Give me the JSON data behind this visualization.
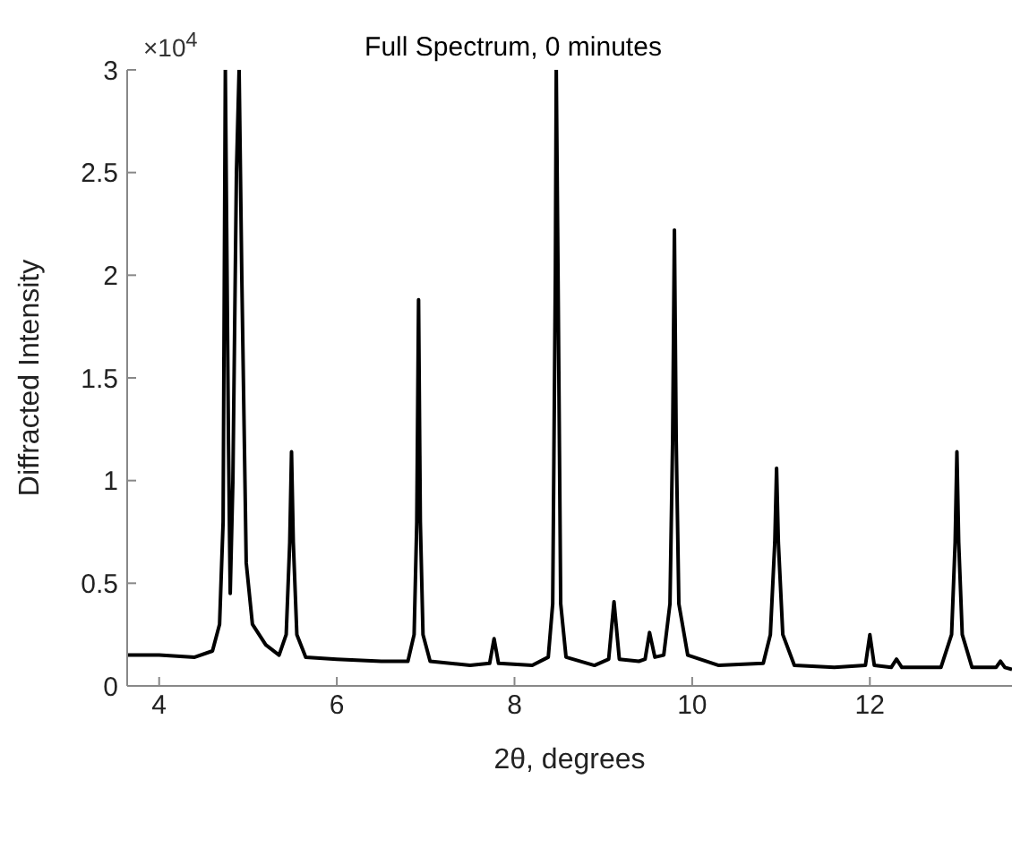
{
  "chart_data": {
    "type": "line",
    "title": "Full Spectrum, 0 minutes",
    "xlabel": "2θ, degrees",
    "ylabel": "Diffracted Intensity",
    "annotations": [
      "×10$^{4}$"
    ],
    "x": [
      3.64,
      4.0,
      4.4,
      4.6,
      4.68,
      4.72,
      4.745,
      4.78,
      4.8,
      4.83,
      4.87,
      4.9,
      4.93,
      4.98,
      5.05,
      5.2,
      5.35,
      5.43,
      5.47,
      5.49,
      5.51,
      5.55,
      5.65,
      6.0,
      6.5,
      6.8,
      6.87,
      6.9,
      6.92,
      6.94,
      6.97,
      7.05,
      7.5,
      7.72,
      7.77,
      7.82,
      8.2,
      8.38,
      8.43,
      8.46,
      8.47,
      8.49,
      8.52,
      8.58,
      8.9,
      9.06,
      9.12,
      9.18,
      9.4,
      9.47,
      9.52,
      9.58,
      9.68,
      9.75,
      9.78,
      9.8,
      9.82,
      9.85,
      9.95,
      10.3,
      10.8,
      10.88,
      10.93,
      10.95,
      10.97,
      11.02,
      11.15,
      11.6,
      11.95,
      12.0,
      12.05,
      12.24,
      12.3,
      12.36,
      12.8,
      12.92,
      12.96,
      12.98,
      13.0,
      13.04,
      13.15,
      13.42,
      13.47,
      13.52,
      13.6
    ],
    "series": [
      {
        "color": "#000000",
        "values": [
          0.15,
          0.15,
          0.14,
          0.17,
          0.3,
          0.8,
          3,
          1.2,
          0.45,
          1,
          2.5,
          3,
          2,
          0.6,
          0.3,
          0.2,
          0.15,
          0.25,
          0.7,
          1.14,
          0.7,
          0.25,
          0.14,
          0.13,
          0.12,
          0.12,
          0.25,
          0.8,
          1.88,
          0.8,
          0.25,
          0.12,
          0.1,
          0.11,
          0.23,
          0.11,
          0.1,
          0.14,
          0.4,
          2,
          3,
          2,
          0.4,
          0.14,
          0.1,
          0.13,
          0.41,
          0.13,
          0.12,
          0.13,
          0.26,
          0.14,
          0.15,
          0.4,
          1.2,
          2.22,
          1.2,
          0.4,
          0.15,
          0.1,
          0.11,
          0.25,
          0.7,
          1.06,
          0.7,
          0.25,
          0.1,
          0.09,
          0.1,
          0.25,
          0.1,
          0.09,
          0.13,
          0.09,
          0.09,
          0.25,
          0.7,
          1.14,
          0.7,
          0.25,
          0.09,
          0.09,
          0.12,
          0.09,
          0.08
        ]
      }
    ],
    "xlim": [
      3.64,
      13.6
    ],
    "xticks": [
      4,
      6,
      8,
      10,
      12
    ],
    "ylim": [
      0,
      3
    ],
    "yticks": [
      0,
      0.5,
      1,
      1.5,
      2,
      2.5,
      3
    ]
  }
}
